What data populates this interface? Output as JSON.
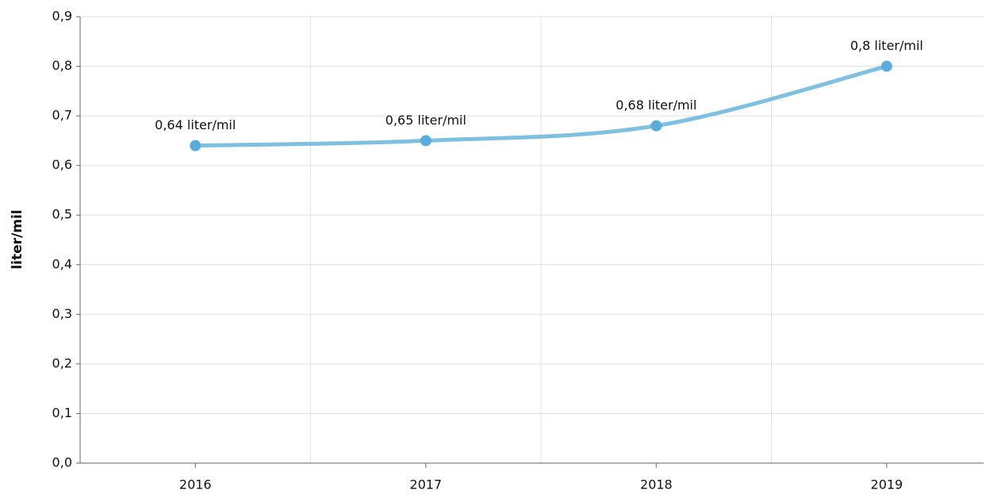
{
  "chart_data": {
    "type": "line",
    "y_label": "liter/mil",
    "categories": [
      "2016",
      "2017",
      "2018",
      "2019"
    ],
    "series": [
      {
        "name": "liter/mil",
        "color": "#7fc0e0",
        "marker_color": "#5badd9",
        "values": [
          0.64,
          0.65,
          0.68,
          0.8
        ],
        "value_labels": [
          "0,64 liter/mil",
          "0,65 liter/mil",
          "0,68 liter/mil",
          "0,8 liter/mil"
        ]
      }
    ],
    "ylim": [
      0,
      0.9
    ],
    "yticks": [
      {
        "value": 0,
        "label": "0,0"
      },
      {
        "value": 0.1,
        "label": "0,1"
      },
      {
        "value": 0.2,
        "label": "0,2"
      },
      {
        "value": 0.3,
        "label": "0,3"
      },
      {
        "value": 0.4,
        "label": "0,4"
      },
      {
        "value": 0.5,
        "label": "0,5"
      },
      {
        "value": 0.6,
        "label": "0,6"
      },
      {
        "value": 0.7,
        "label": "0,7"
      },
      {
        "value": 0.8,
        "label": "0,8"
      },
      {
        "value": 0.9,
        "label": "0,9"
      }
    ],
    "grid": true
  }
}
